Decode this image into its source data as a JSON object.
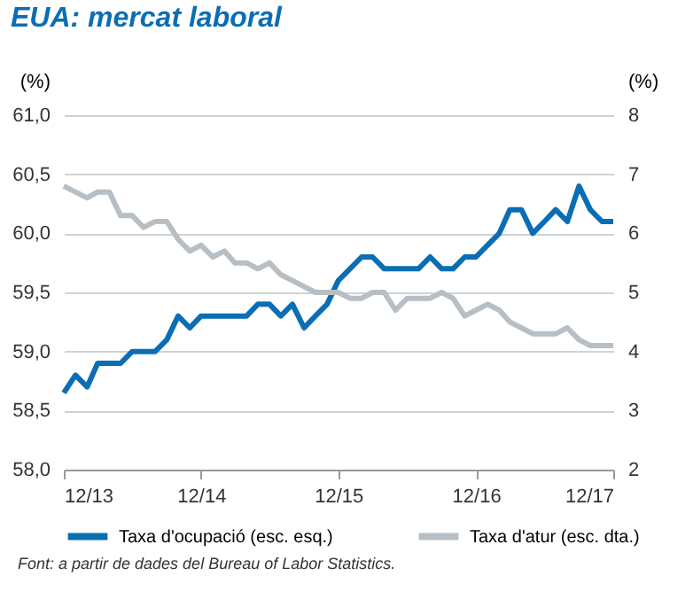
{
  "chart_data": {
    "type": "line",
    "title": "EUA: mercat laboral",
    "ylabel": "(%)",
    "y2label": "(%)",
    "annotations": [
      "Font: a partir de dades del Bureau of Labor Statistics."
    ],
    "x": [
      "2013-12",
      "2014-01",
      "2014-02",
      "2014-03",
      "2014-04",
      "2014-05",
      "2014-06",
      "2014-07",
      "2014-08",
      "2014-09",
      "2014-10",
      "2014-11",
      "2014-12",
      "2015-01",
      "2015-02",
      "2015-03",
      "2015-04",
      "2015-05",
      "2015-06",
      "2015-07",
      "2015-08",
      "2015-09",
      "2015-10",
      "2015-11",
      "2015-12",
      "2016-01",
      "2016-02",
      "2016-03",
      "2016-04",
      "2016-05",
      "2016-06",
      "2016-07",
      "2016-08",
      "2016-09",
      "2016-10",
      "2016-11",
      "2016-12",
      "2017-01",
      "2017-02",
      "2017-03",
      "2017-04",
      "2017-05",
      "2017-06",
      "2017-07",
      "2017-08",
      "2017-09",
      "2017-10",
      "2017-11",
      "2017-12"
    ],
    "series": [
      {
        "name": "Taxa d'ocupació (esc. esq.)",
        "color": "#0a6eb4",
        "values": [
          58.65,
          58.8,
          58.7,
          58.9,
          58.9,
          58.9,
          59.0,
          59.0,
          59.0,
          59.1,
          59.3,
          59.2,
          59.3,
          59.3,
          59.3,
          59.3,
          59.3,
          59.4,
          59.4,
          59.3,
          59.4,
          59.2,
          59.3,
          59.4,
          59.6,
          59.7,
          59.8,
          59.8,
          59.7,
          59.7,
          59.7,
          59.7,
          59.8,
          59.7,
          59.7,
          59.8,
          59.8,
          59.9,
          60.0,
          60.2,
          60.2,
          60.0,
          60.1,
          60.2,
          60.1,
          60.4,
          60.2,
          60.1,
          60.1
        ]
      },
      {
        "name": "Taxa d'atur (esc. dta.)",
        "color": "#b8bfc4",
        "axis": "y2",
        "values": [
          6.8,
          6.7,
          6.6,
          6.7,
          6.7,
          6.3,
          6.3,
          6.1,
          6.2,
          6.2,
          5.9,
          5.7,
          5.8,
          5.6,
          5.7,
          5.5,
          5.5,
          5.4,
          5.5,
          5.3,
          5.2,
          5.1,
          5.0,
          5.0,
          5.0,
          4.9,
          4.9,
          5.0,
          5.0,
          4.7,
          4.9,
          4.9,
          4.9,
          5.0,
          4.9,
          4.6,
          4.7,
          4.8,
          4.7,
          4.5,
          4.4,
          4.3,
          4.3,
          4.3,
          4.4,
          4.2,
          4.1,
          4.1,
          4.1
        ]
      }
    ],
    "xlim": [
      "2013-12",
      "2017-12"
    ],
    "xticks": [
      {
        "value": "2013-12",
        "label": "12/13"
      },
      {
        "value": "2014-12",
        "label": "12/14"
      },
      {
        "value": "2015-12",
        "label": "12/15"
      },
      {
        "value": "2016-12",
        "label": "12/16"
      },
      {
        "value": "2017-12",
        "label": "12/17"
      }
    ],
    "ylim": [
      58,
      61
    ],
    "yticks": [
      {
        "value": 58,
        "label": "58,0"
      },
      {
        "value": 58.5,
        "label": "58,5"
      },
      {
        "value": 59,
        "label": "59,0"
      },
      {
        "value": 59.5,
        "label": "59,5"
      },
      {
        "value": 60,
        "label": "60,0"
      },
      {
        "value": 60.5,
        "label": "60,5"
      },
      {
        "value": 61,
        "label": "61,0"
      }
    ],
    "y2lim": [
      2,
      8
    ],
    "y2ticks": [
      2,
      3,
      4,
      5,
      6,
      7,
      8
    ],
    "grid": "y",
    "legend": "bottom",
    "marker": "none",
    "line_style": "solid"
  }
}
